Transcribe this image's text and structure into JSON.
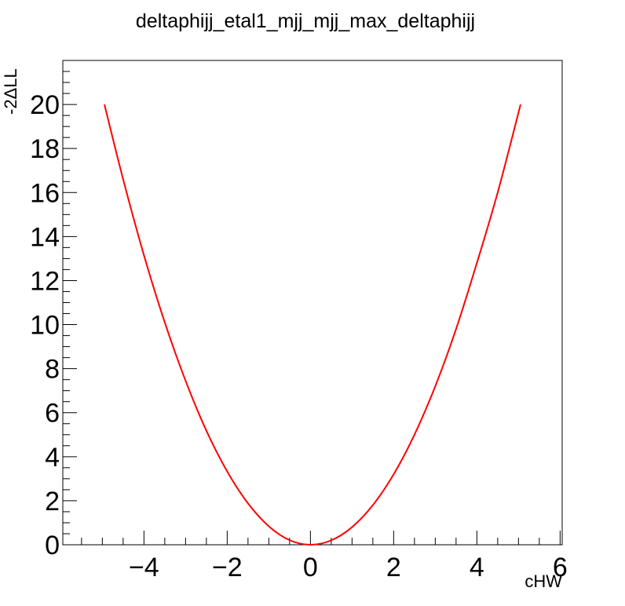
{
  "chart_data": {
    "type": "line",
    "title": "deltaphijj_etal1_mjj_mjj_max_deltaphijj",
    "xlabel": "cHW",
    "ylabel": "-2ΔLL",
    "xlim": [
      -5.95,
      6.05
    ],
    "ylim": [
      0,
      22
    ],
    "x_ticks": [
      -4,
      -2,
      0,
      2,
      4,
      6
    ],
    "x_tick_labels": [
      "−4",
      "−2",
      "0",
      "2",
      "4",
      "6"
    ],
    "y_ticks": [
      0,
      2,
      4,
      6,
      8,
      10,
      12,
      14,
      16,
      18,
      20
    ],
    "y_tick_labels": [
      "0",
      "2",
      "4",
      "6",
      "8",
      "10",
      "12",
      "14",
      "16",
      "18",
      "20"
    ],
    "grid": false,
    "series": [
      {
        "color": "#ff0000",
        "x": [
          -4.95,
          -4.5,
          -4.0,
          -3.5,
          -3.0,
          -2.5,
          -2.0,
          -1.5,
          -1.0,
          -0.5,
          0.0,
          0.5,
          1.0,
          1.5,
          2.0,
          2.5,
          3.0,
          3.5,
          4.0,
          4.5,
          5.05
        ],
        "y": [
          20.0,
          16.6,
          13.15,
          10.1,
          7.45,
          5.18,
          3.33,
          1.88,
          0.84,
          0.21,
          0.0,
          0.2,
          0.8,
          1.8,
          3.2,
          5.0,
          7.2,
          9.8,
          12.8,
          16.0,
          20.0
        ]
      }
    ]
  }
}
